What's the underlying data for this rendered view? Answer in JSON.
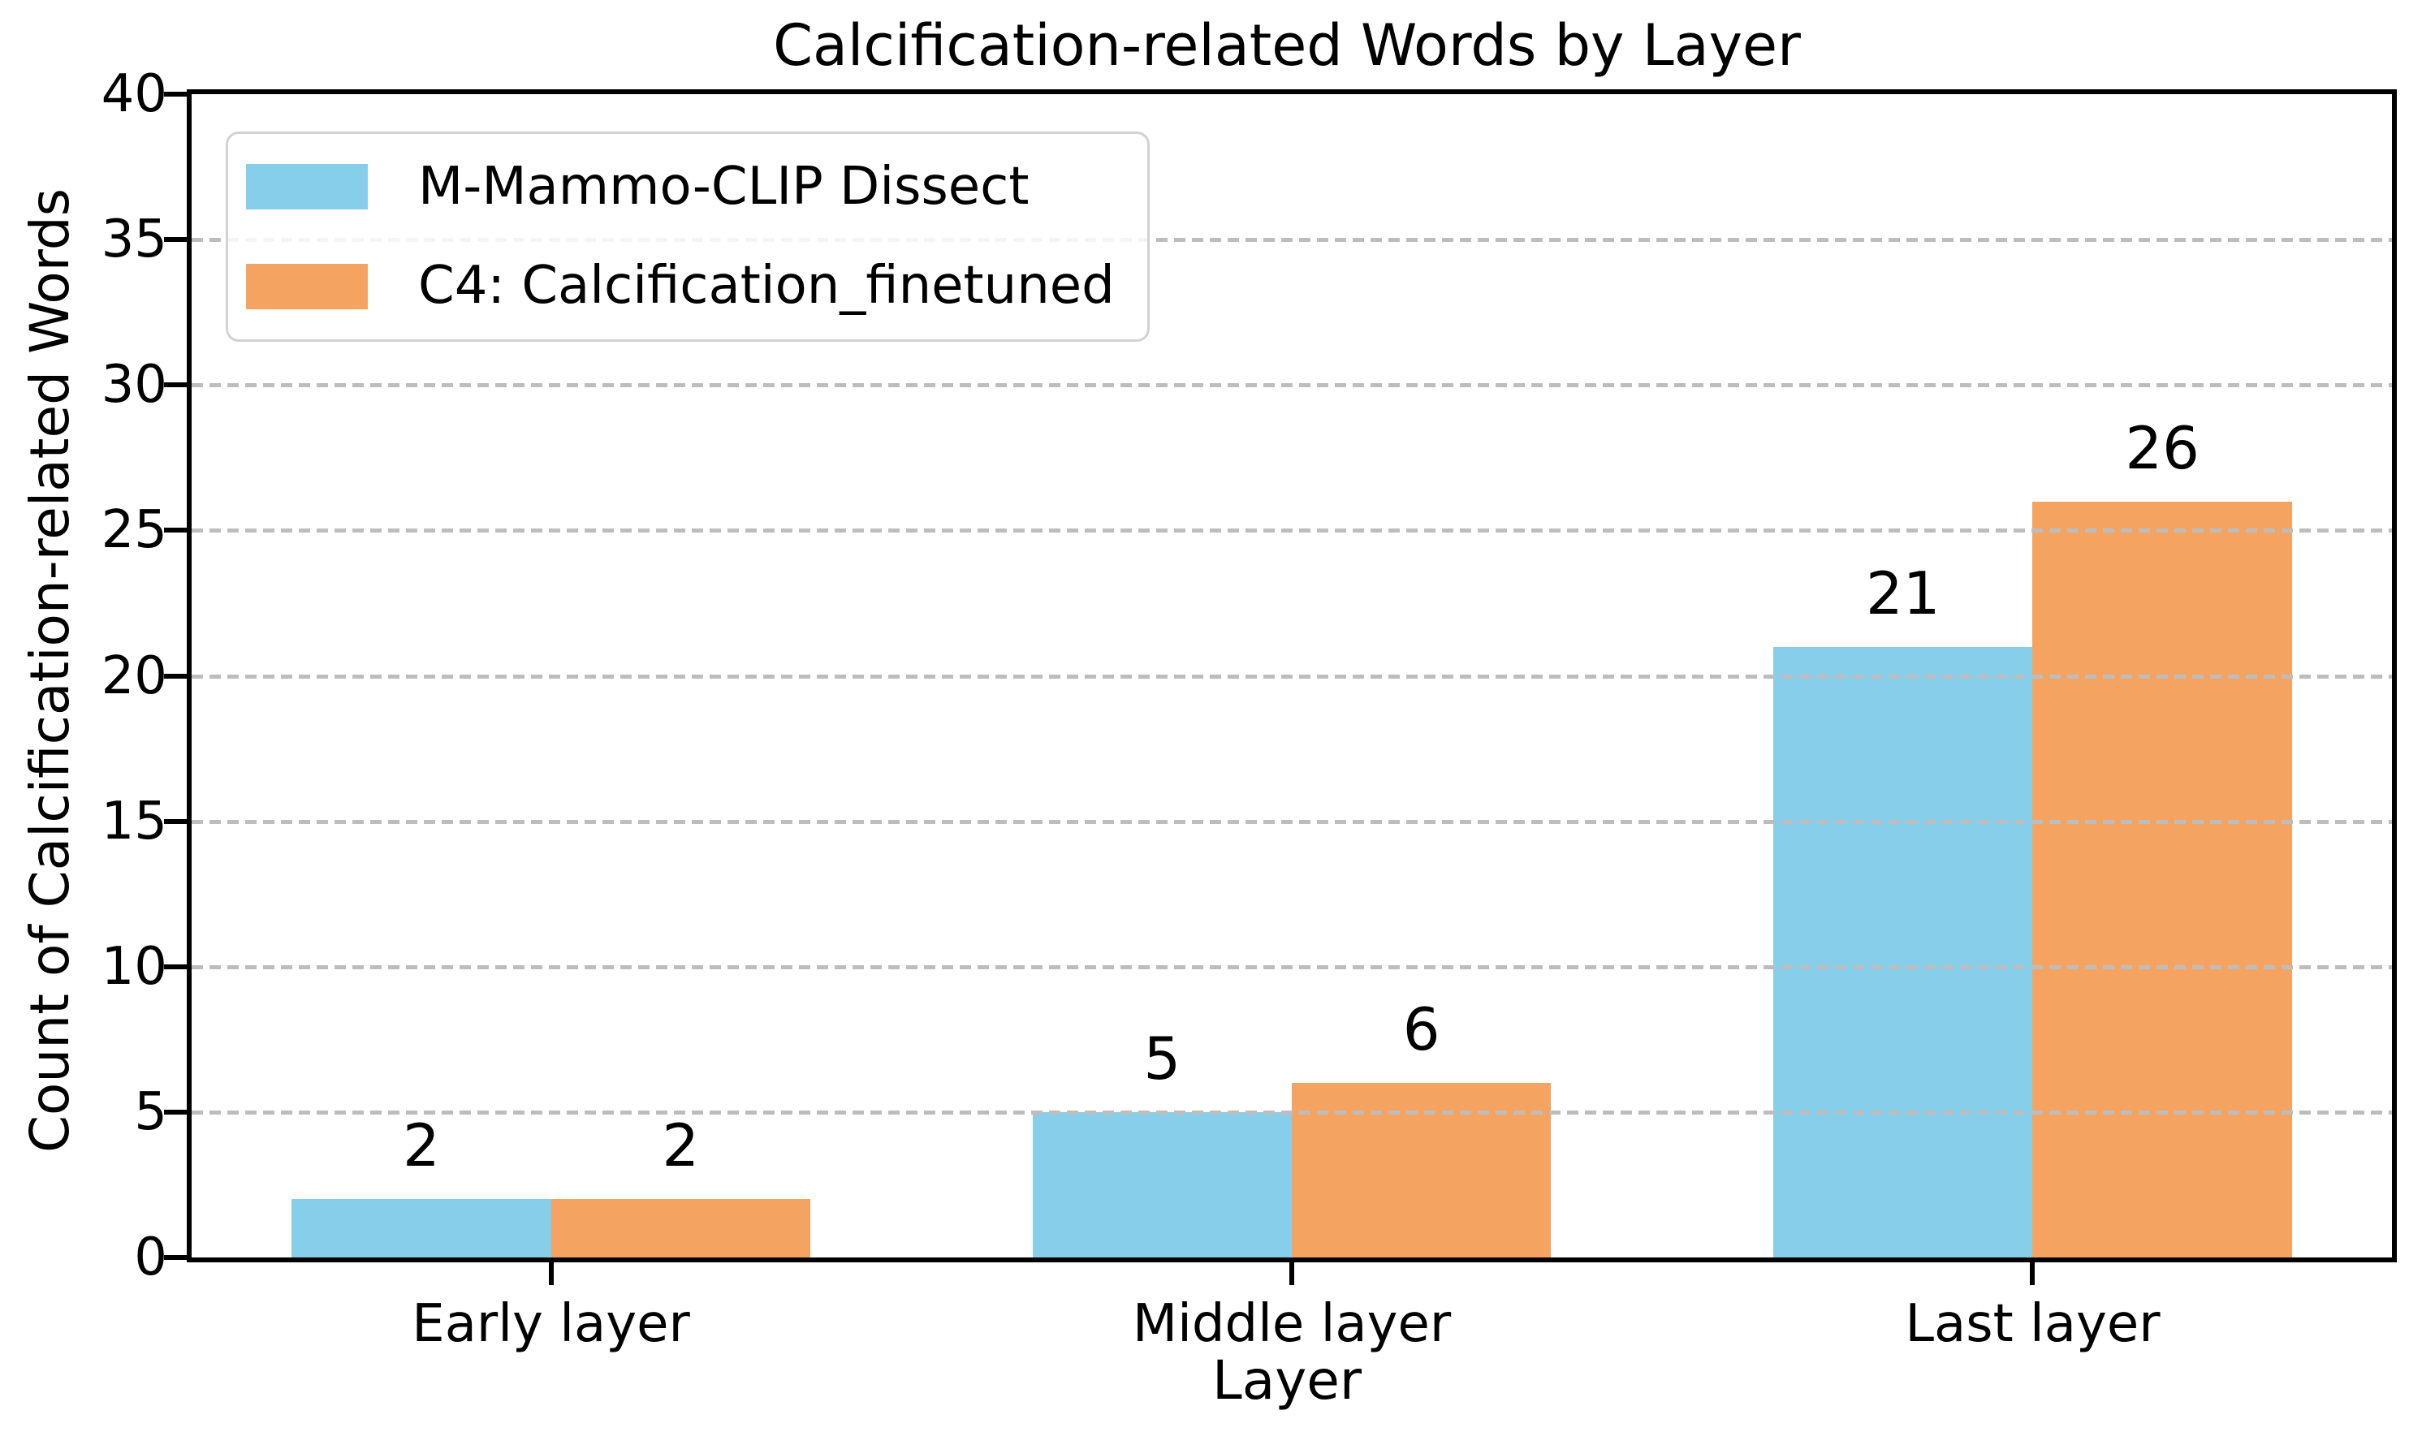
{
  "figure": {
    "title": "Calcification-related Words by Layer"
  },
  "chart_data": {
    "type": "bar",
    "title": "Calcification-related Words by Layer",
    "xlabel": "Layer",
    "ylabel": "Count of Calcification-related Words",
    "categories": [
      "Early layer",
      "Middle layer",
      "Last layer"
    ],
    "series": [
      {
        "name": "M-Mammo-CLIP Dissect",
        "color": "#87CEEB",
        "values": [
          2,
          5,
          21
        ]
      },
      {
        "name": "C4: Calcification_finetuned",
        "color": "#F4A460",
        "values": [
          2,
          6,
          26
        ]
      }
    ],
    "value_labels": [
      [
        "2",
        "5",
        "21"
      ],
      [
        "2",
        "6",
        "26"
      ]
    ],
    "ylim": [
      0,
      40
    ],
    "yticks": [
      0,
      5,
      10,
      15,
      20,
      25,
      30,
      35,
      40
    ],
    "gridlines": {
      "axis": "y",
      "style": "dashed",
      "color": "#bdbdbd",
      "values": [
        5,
        10,
        15,
        20,
        25,
        30,
        35
      ]
    },
    "legend_position": "upper left",
    "bar_width_fraction": 0.35,
    "group_positions": [
      0,
      1,
      2
    ],
    "x_range": [
      -0.485,
      2.485
    ]
  }
}
